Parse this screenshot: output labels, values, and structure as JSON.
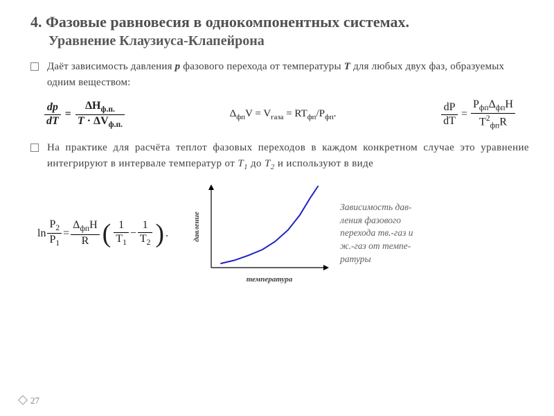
{
  "title": {
    "main": "4. Фазовые равновесия в однокомпонентных системах.",
    "sub": "Уравнение Клаузиуса-Клапейрона"
  },
  "bullet1": {
    "prefix": "Даёт зависимость давления ",
    "p": "p",
    "mid": " фазового перехода от температуры ",
    "T": "T",
    "suffix": " для любых двух фаз, образуемых одним веществом:"
  },
  "eq1": {
    "dp": "dp",
    "dT": "dT",
    "dH": "ΔH",
    "sub_fp": "ф.п.",
    "T": "T",
    "dot": " · ",
    "dV": "ΔV"
  },
  "eq2_text": "Δ фп V = V газа = RT фп / P фп.",
  "eq2": {
    "lhs_num": "Δ",
    "lhs_sub": "фп",
    "lhs_V": "V",
    "eq": " = V",
    "sub_gas": "газа",
    "eq2": " = RT",
    "sub_fp": "фп",
    "over": "/P",
    "dot": "."
  },
  "eq3": {
    "dP": "dP",
    "dT": "dT",
    "P": "P",
    "sub_fp": "фп",
    "dH": "Δ",
    "H": "H",
    "T2": "T",
    "sq": "2",
    "R": "R"
  },
  "bullet2": {
    "line": "На практике для расчёта теплот фазовых переходов в каждом конкретном случае это уравнение интегрируют в интервале температур от ",
    "T1": "T",
    "s1": "1",
    "to": " до ",
    "T2": "T",
    "s2": "2",
    "end": " и используют в виде"
  },
  "eq4": {
    "ln": "ln",
    "P2": "P",
    "s2": "2",
    "P1": "P",
    "s1": "1",
    "eq": " = ",
    "d": "Δ",
    "sub_fp": "фп",
    "H": "H",
    "R": "R",
    "one": "1",
    "T1": "T",
    "T2": "T",
    "minus": " − ",
    "dot": " ."
  },
  "chart": {
    "type": "line",
    "x_label": "температура",
    "y_label": "давление",
    "xlim": [
      0,
      100
    ],
    "ylim": [
      0,
      100
    ],
    "points": [
      [
        8,
        5
      ],
      [
        20,
        9
      ],
      [
        32,
        15
      ],
      [
        44,
        22
      ],
      [
        55,
        32
      ],
      [
        66,
        46
      ],
      [
        76,
        64
      ],
      [
        85,
        85
      ],
      [
        92,
        100
      ]
    ],
    "curve_color": "#2020c8",
    "curve_width": 2,
    "axis_color": "#000000",
    "background_color": "#ffffff",
    "label_fontsize": 11,
    "label_color": "#404040",
    "label_style": "italic"
  },
  "caption": "Зависимость дав-\nления фазового\nперехода тв.-газ и\nж.-газ от темпе-\nратуры",
  "page": "27"
}
